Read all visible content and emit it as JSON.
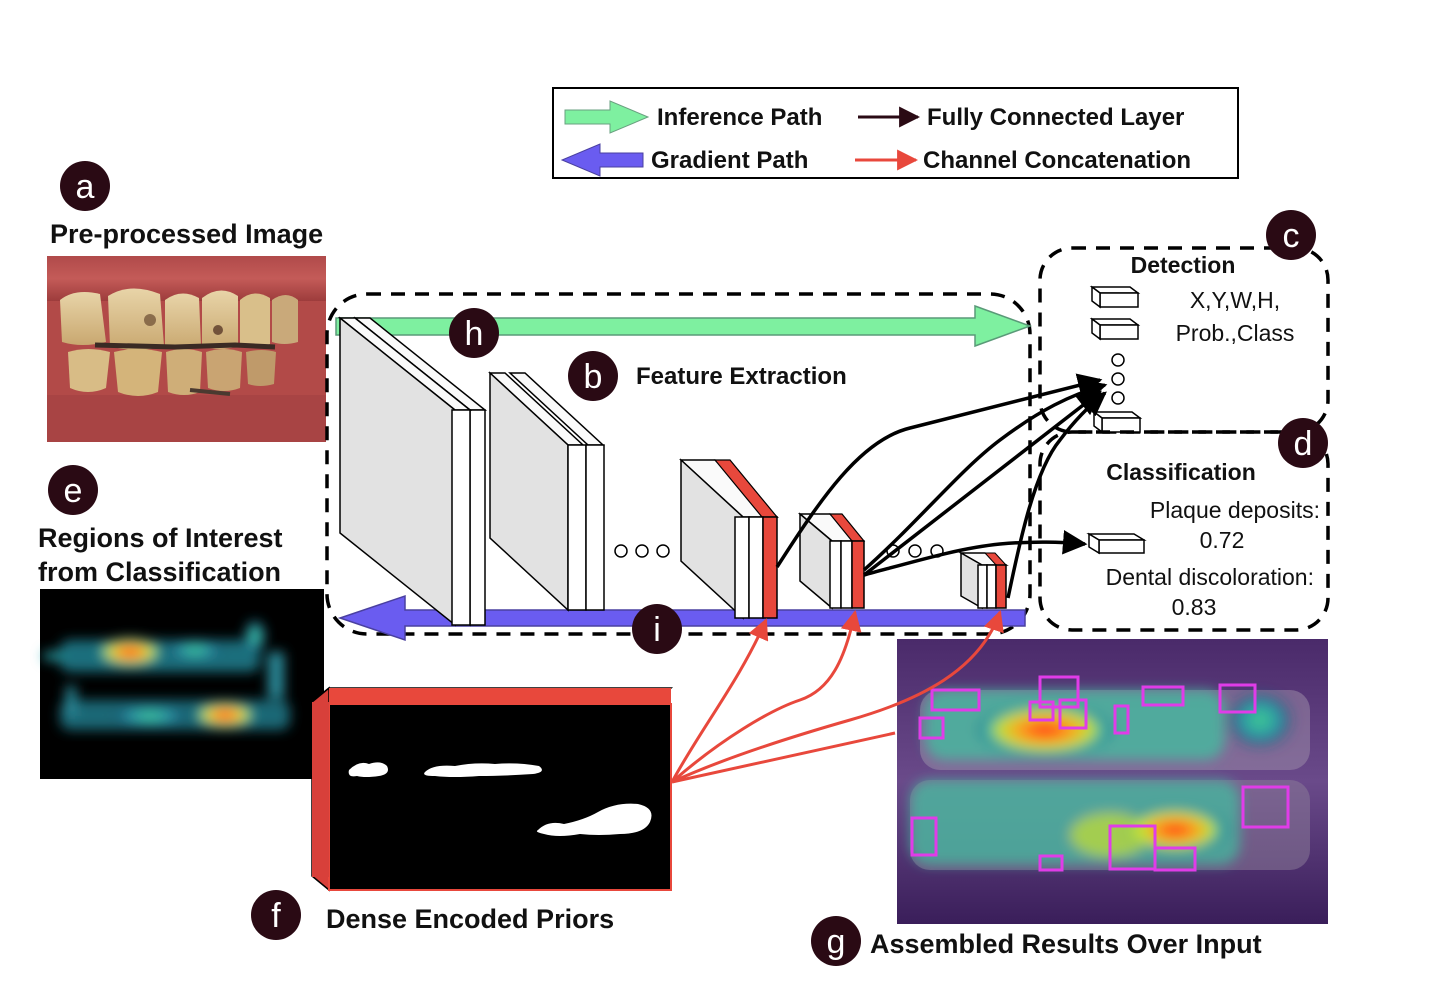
{
  "legend": {
    "inference": "Inference Path",
    "gradient": "Gradient Path",
    "fully_connected": "Fully Connected Layer",
    "concat": "Channel Concatenation"
  },
  "badges": {
    "a": "a",
    "b": "b",
    "c": "c",
    "d": "d",
    "e": "e",
    "f": "f",
    "g": "g",
    "h": "h",
    "i": "i"
  },
  "labels": {
    "preprocessed": "Pre-processed Image",
    "feature_extraction": "Feature Extraction",
    "roi_line1": "Regions of Interest",
    "roi_line2": "from Classification",
    "dense_priors": "Dense Encoded Priors",
    "assembled": "Assembled Results Over Input"
  },
  "detection": {
    "title": "Detection",
    "output_line1": "X,Y,W,H,",
    "output_line2": "Prob.,Class"
  },
  "classification": {
    "title": "Classification",
    "item1_label": "Plaque deposits:",
    "item1_value": "0.72",
    "item2_label": "Dental discoloration:",
    "item2_value": "0.83"
  },
  "colors": {
    "inference": "#7ef0a0",
    "gradient": "#6a5cf0",
    "fully_connected": "#000000",
    "concat": "#e8483c",
    "badge": "#2a0a14",
    "box_magenta": "#e03ce8"
  },
  "icons": {
    "photo": "teeth-photo",
    "heatmap": "heatmap-image",
    "mask": "binary-mask-image",
    "overlay": "overlay-result-image"
  }
}
